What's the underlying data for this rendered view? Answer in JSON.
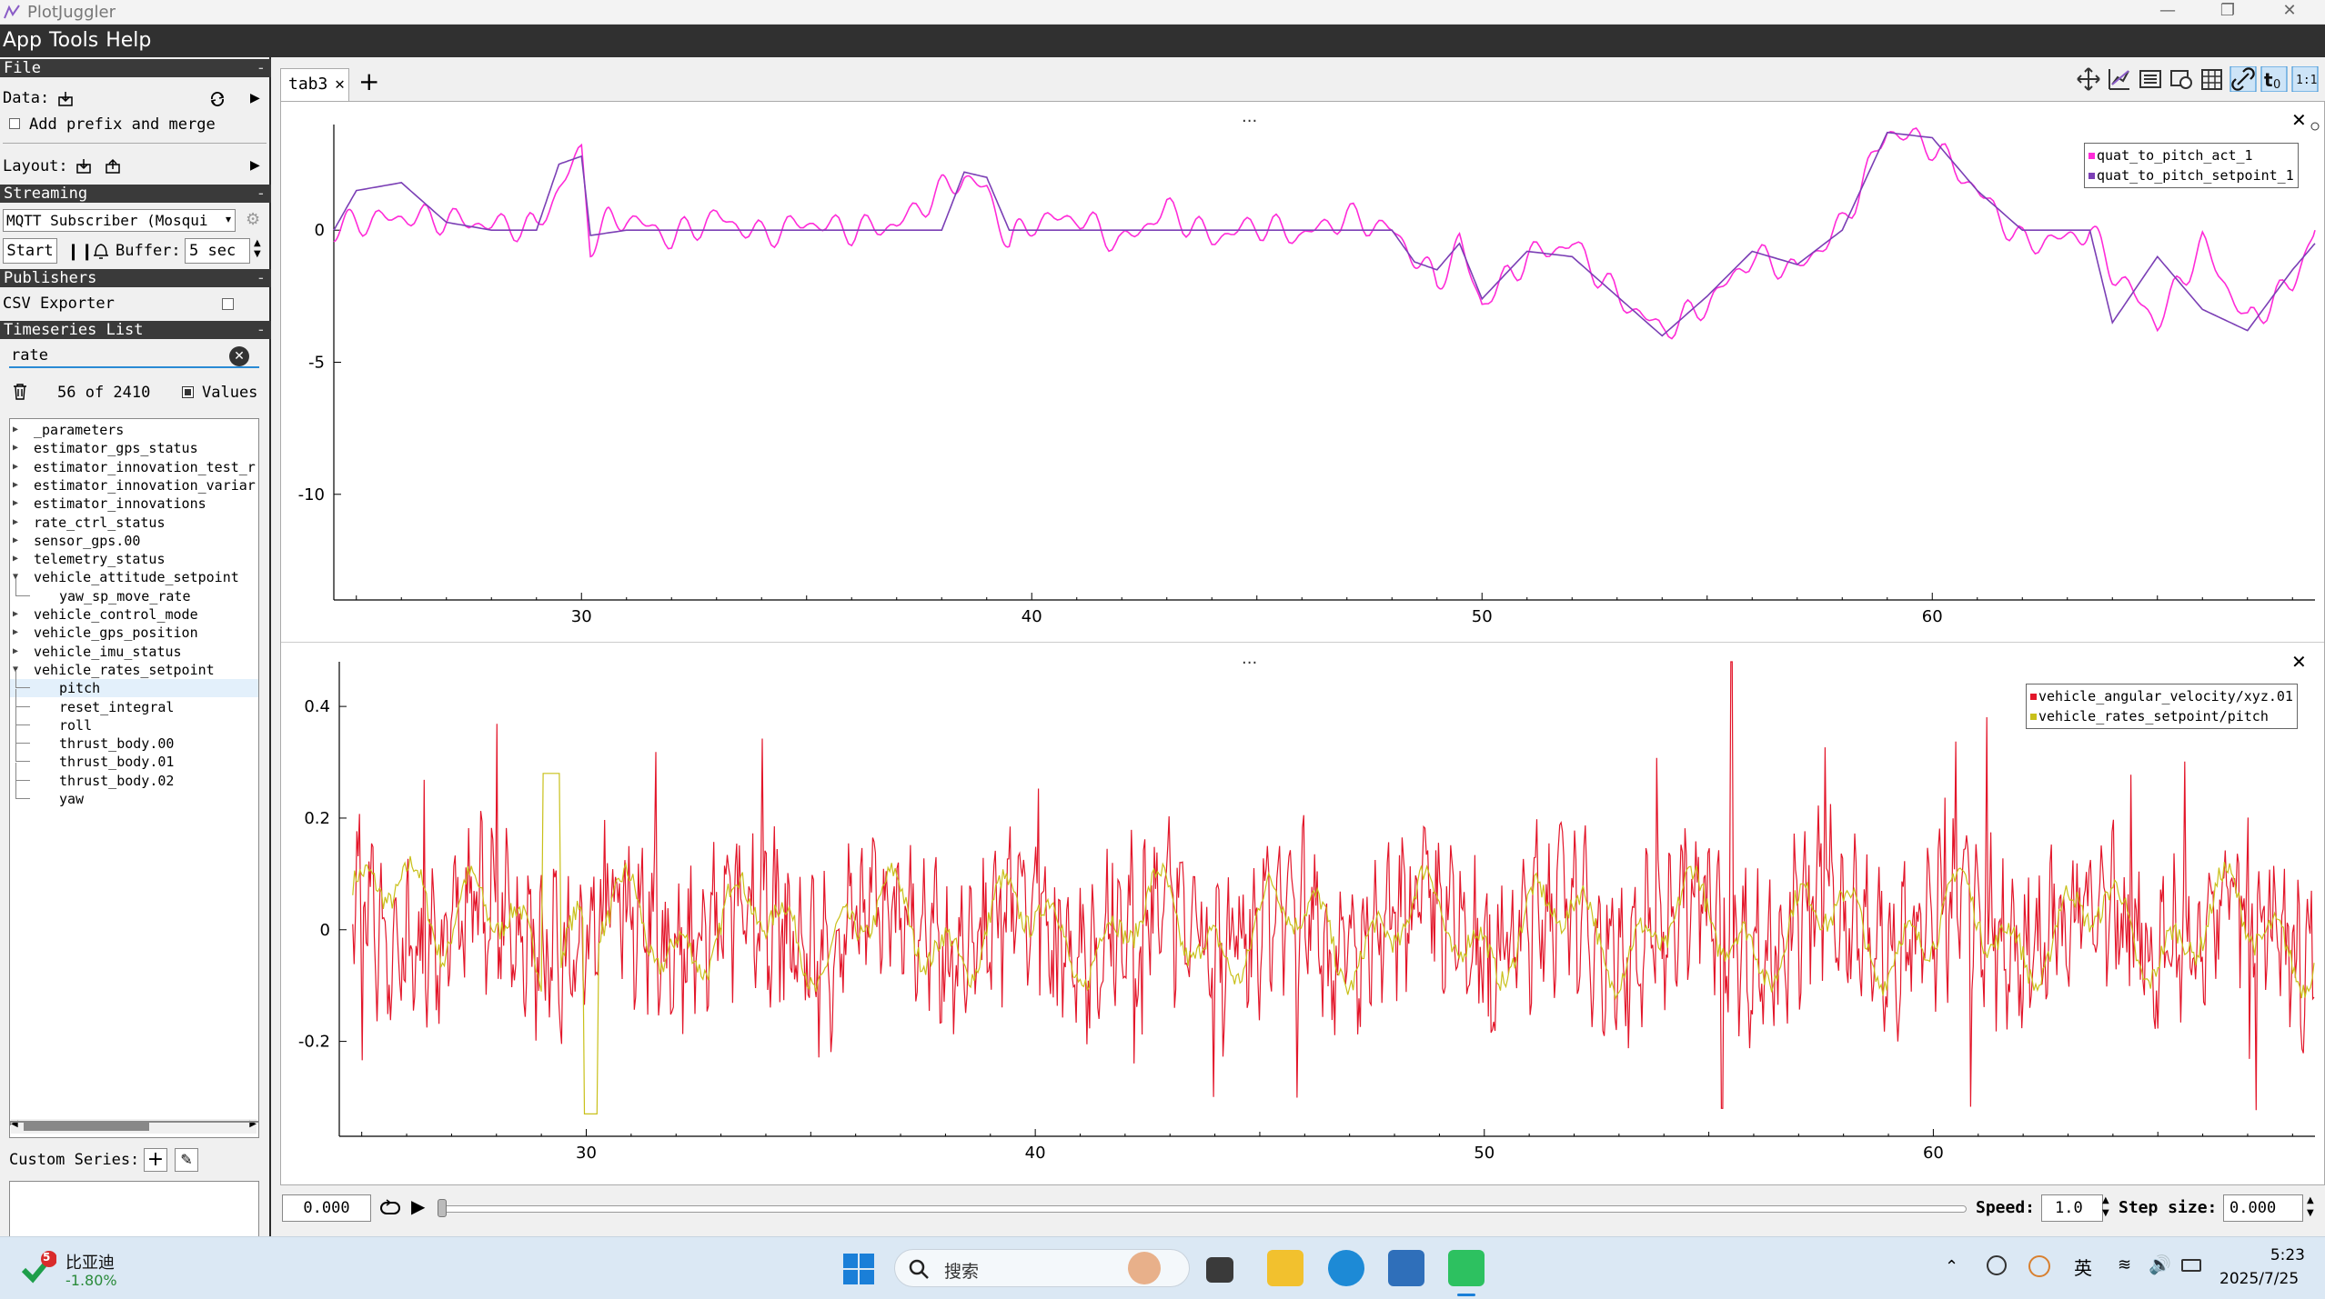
{
  "app": {
    "title": "PlotJuggler"
  },
  "menu": {
    "items": [
      "App",
      "Tools",
      "Help"
    ]
  },
  "sidebar": {
    "file_header": "File",
    "data_label": "Data:",
    "add_prefix_label": "Add prefix and merge",
    "layout_label": "Layout:",
    "streaming_header": "Streaming",
    "streaming_source": "MQTT Subscriber (Mosqui",
    "start_button": "Start",
    "buffer_label": "Buffer:",
    "buffer_value": "5 sec",
    "publishers_header": "Publishers",
    "csv_exporter_label": "CSV Exporter",
    "timeseries_header": "Timeseries List",
    "filter_value": "rate",
    "count_text": "56 of 2410",
    "values_label": "Values",
    "custom_series_label": "Custom Series:",
    "tree": [
      {
        "label": "_parameters",
        "level": 0,
        "state": "collapsed"
      },
      {
        "label": "estimator_gps_status",
        "level": 0,
        "state": "collapsed"
      },
      {
        "label": "estimator_innovation_test_r",
        "level": 0,
        "state": "collapsed"
      },
      {
        "label": "estimator_innovation_variar",
        "level": 0,
        "state": "collapsed"
      },
      {
        "label": "estimator_innovations",
        "level": 0,
        "state": "collapsed"
      },
      {
        "label": "rate_ctrl_status",
        "level": 0,
        "state": "collapsed"
      },
      {
        "label": "sensor_gps.00",
        "level": 0,
        "state": "collapsed"
      },
      {
        "label": "telemetry_status",
        "level": 0,
        "state": "collapsed"
      },
      {
        "label": "vehicle_attitude_setpoint",
        "level": 0,
        "state": "expanded"
      },
      {
        "label": "yaw_sp_move_rate",
        "level": 1,
        "state": "leaf"
      },
      {
        "label": "vehicle_control_mode",
        "level": 0,
        "state": "collapsed"
      },
      {
        "label": "vehicle_gps_position",
        "level": 0,
        "state": "collapsed"
      },
      {
        "label": "vehicle_imu_status",
        "level": 0,
        "state": "collapsed"
      },
      {
        "label": "vehicle_rates_setpoint",
        "level": 0,
        "state": "expanded"
      },
      {
        "label": "pitch",
        "level": 1,
        "state": "leaf",
        "selected": true
      },
      {
        "label": "reset_integral",
        "level": 1,
        "state": "leaf"
      },
      {
        "label": "roll",
        "level": 1,
        "state": "leaf"
      },
      {
        "label": "thrust_body.00",
        "level": 1,
        "state": "leaf"
      },
      {
        "label": "thrust_body.01",
        "level": 1,
        "state": "leaf"
      },
      {
        "label": "thrust_body.02",
        "level": 1,
        "state": "leaf"
      },
      {
        "label": "yaw",
        "level": 1,
        "state": "leaf"
      }
    ]
  },
  "tabs": [
    {
      "label": "tab3"
    }
  ],
  "toolbar_icons": [
    "move-icon",
    "ruler-icon",
    "list-icon",
    "clock-icon",
    "grid-icon",
    "link-icon",
    "t0-icon",
    "ratio-icon"
  ],
  "plots": {
    "dots": "...",
    "top": {
      "legend": [
        {
          "name": "quat_to_pitch_act_1",
          "color": "#ff2bd8"
        },
        {
          "name": "quat_to_pitch_setpoint_1",
          "color": "#7b3fb5"
        }
      ],
      "xticks": [
        "30",
        "40",
        "50",
        "60"
      ],
      "yticks": [
        "0",
        "-5",
        "-10"
      ]
    },
    "bottom": {
      "legend": [
        {
          "name": "vehicle_angular_velocity/xyz.01",
          "color": "#e3162a"
        },
        {
          "name": "vehicle_rates_setpoint/pitch",
          "color": "#c9c01a"
        }
      ],
      "xticks": [
        "30",
        "40",
        "50",
        "60"
      ],
      "yticks": [
        "0.4",
        "0.2",
        "0",
        "-0.2"
      ]
    }
  },
  "bottombar": {
    "time_value": "0.000",
    "speed_label": "Speed:",
    "speed_value": "1.0",
    "step_label": "Step size:",
    "step_value": "0.000"
  },
  "taskbar": {
    "stock_name": "比亚迪",
    "stock_change": "-1.80%",
    "stock_badge": "5",
    "search_placeholder": "搜索",
    "ime_label": "英",
    "time": "5:23",
    "date": "2025/7/25"
  },
  "chart_data": [
    {
      "type": "line",
      "xlim": [
        24.5,
        68.5
      ],
      "ylim": [
        -14,
        4
      ],
      "series": [
        {
          "name": "quat_to_pitch_act_1",
          "color": "#ff2bd8",
          "x": [
            24.5,
            25,
            26,
            27,
            28,
            29,
            30,
            30.2,
            30.6,
            31,
            32,
            33,
            34,
            35,
            36,
            37,
            38,
            38.5,
            39,
            39.5,
            40,
            41,
            42,
            43,
            44,
            45,
            46,
            47,
            48,
            48.5,
            49,
            49.5,
            50,
            51,
            52,
            53,
            54,
            55,
            56,
            57,
            58,
            59,
            60,
            61,
            62,
            63,
            63.5,
            64,
            65,
            66,
            67,
            68,
            68.5
          ],
          "y": [
            0,
            0.3,
            0.5,
            0.4,
            0.2,
            0.1,
            3.0,
            -0.5,
            0.3,
            0.5,
            -0.3,
            0.5,
            -0.2,
            0.3,
            0,
            0.2,
            1.5,
            2.0,
            1.5,
            -0.5,
            0.3,
            0.5,
            -0.5,
            0.8,
            -0.3,
            0.2,
            -0.2,
            0.5,
            0,
            -1.0,
            -2.0,
            -0.5,
            -2.8,
            -1.0,
            -0.5,
            -2.5,
            -3.8,
            -2.8,
            -1.0,
            -1.5,
            0.2,
            3.8,
            3.2,
            1.5,
            -0.5,
            -0.3,
            0,
            -1.5,
            -3.5,
            -0.5,
            -3.5,
            -2.0,
            0
          ]
        },
        {
          "name": "quat_to_pitch_setpoint_1",
          "color": "#7b3fb5",
          "x": [
            24.5,
            25,
            26,
            27,
            28,
            29,
            29.5,
            30,
            30.2,
            31,
            32,
            33,
            34,
            35,
            36,
            37,
            38,
            38.5,
            39,
            39.5,
            40,
            41,
            42,
            43,
            44,
            45,
            46,
            47,
            48,
            48.5,
            49,
            49.5,
            50,
            51,
            52,
            53,
            54,
            55,
            56,
            57,
            58,
            59,
            60,
            61,
            62,
            63,
            63.5,
            64,
            65,
            66,
            67,
            68,
            68.5
          ],
          "y": [
            0,
            1.5,
            1.8,
            0.3,
            0,
            0,
            2.5,
            2.8,
            -0.2,
            0,
            0,
            0,
            0,
            0,
            0,
            0,
            0,
            2.2,
            2.0,
            0,
            0,
            0,
            0,
            0,
            0,
            0,
            0,
            0,
            0,
            -1.2,
            -1.5,
            -0.5,
            -2.6,
            -0.8,
            -1.0,
            -2.5,
            -4.0,
            -2.5,
            -0.8,
            -1.3,
            0,
            3.7,
            3.5,
            1.5,
            0,
            0,
            0,
            -3.5,
            -1.0,
            -3.0,
            -3.8,
            -1.5,
            -0.5
          ]
        }
      ]
    },
    {
      "type": "line",
      "xlim": [
        24.5,
        68.5
      ],
      "ylim": [
        -0.37,
        0.48
      ],
      "series": [
        {
          "name": "vehicle_angular_velocity/xyz.01",
          "color": "#e3162a",
          "amplitude": 0.3,
          "range": [
            -0.33,
            0.48
          ]
        },
        {
          "name": "vehicle_rates_setpoint/pitch",
          "color": "#c9c01a",
          "amplitude": 0.3,
          "range": [
            -0.35,
            0.3
          ]
        }
      ]
    }
  ]
}
